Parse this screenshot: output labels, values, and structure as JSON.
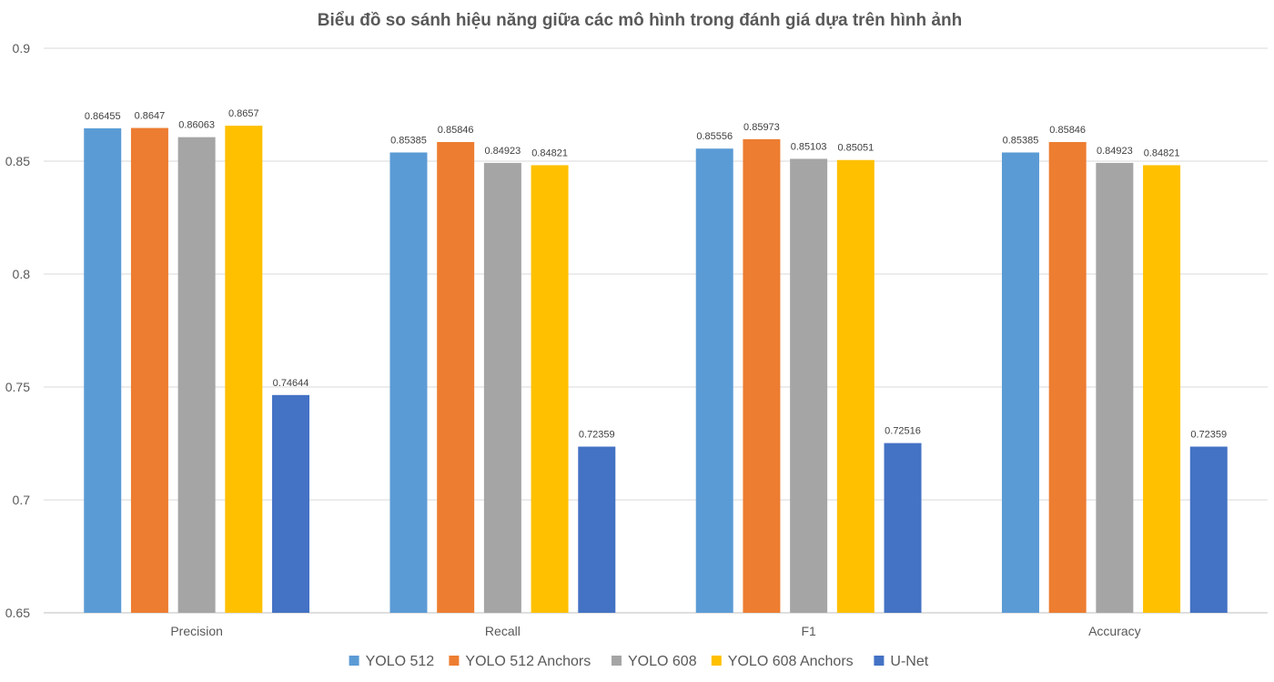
{
  "chart_data": {
    "type": "bar",
    "title": "Biểu đồ so sánh hiệu năng giữa các mô hình trong đánh giá dựa trên hình ảnh",
    "xlabel": "",
    "ylabel": "",
    "ylim": [
      0.65,
      0.9
    ],
    "yticks": [
      "0.65",
      "0.7",
      "0.75",
      "0.8",
      "0.85",
      "0.9"
    ],
    "grid": true,
    "legend_position": "bottom",
    "categories": [
      "Precision",
      "Recall",
      "F1",
      "Accuracy"
    ],
    "series": [
      {
        "name": "YOLO 512",
        "color": "#5b9bd5",
        "values": [
          0.86455,
          0.85385,
          0.85556,
          0.85385
        ],
        "labels": [
          "0.86455",
          "0.85385",
          "0.85556",
          "0.85385"
        ]
      },
      {
        "name": "YOLO 512 Anchors",
        "color": "#ed7d31",
        "values": [
          0.8647,
          0.85846,
          0.85973,
          0.85846
        ],
        "labels": [
          "0.8647",
          "0.85846",
          "0.85973",
          "0.85846"
        ]
      },
      {
        "name": "YOLO 608",
        "color": "#a5a5a5",
        "values": [
          0.86063,
          0.84923,
          0.85103,
          0.84923
        ],
        "labels": [
          "0.86063",
          "0.84923",
          "0.85103",
          "0.84923"
        ]
      },
      {
        "name": "YOLO 608 Anchors",
        "color": "#ffc000",
        "values": [
          0.8657,
          0.84821,
          0.85051,
          0.84821
        ],
        "labels": [
          "0.8657",
          "0.84821",
          "0.85051",
          "0.84821"
        ]
      },
      {
        "name": "U-Net",
        "color": "#4472c4",
        "values": [
          0.74644,
          0.72359,
          0.72516,
          0.72359
        ],
        "labels": [
          "0.74644",
          "0.72359",
          "0.72516",
          "0.72359"
        ]
      }
    ]
  }
}
